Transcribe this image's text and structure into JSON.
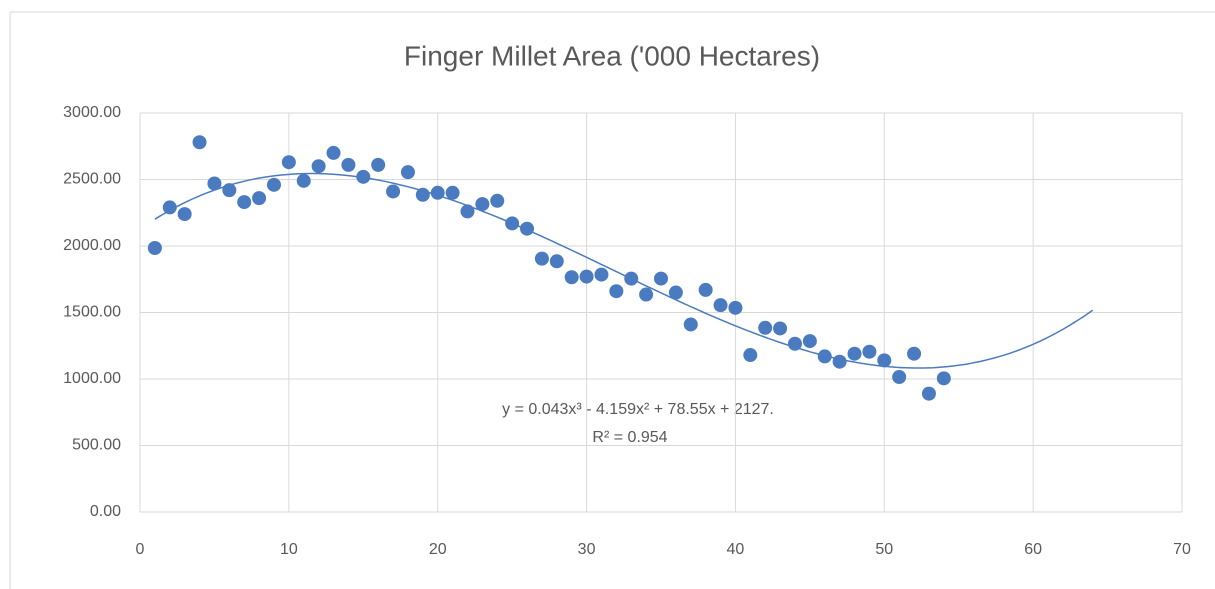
{
  "chart_data": {
    "type": "scatter",
    "title": "Finger Millet Area ('000 Hectares)",
    "color": "#4a7bc0",
    "grid": true,
    "x": [
      1,
      2,
      3,
      4,
      5,
      6,
      7,
      8,
      9,
      10,
      11,
      12,
      13,
      14,
      15,
      16,
      17,
      18,
      19,
      20,
      21,
      22,
      23,
      24,
      25,
      26,
      27,
      28,
      29,
      30,
      31,
      32,
      33,
      34,
      35,
      36,
      37,
      38,
      39,
      40,
      41,
      42,
      43,
      44,
      45,
      46,
      47,
      48,
      49,
      50,
      51,
      52,
      53,
      54
    ],
    "values": [
      1985,
      2290,
      2240,
      2780,
      2470,
      2420,
      2330,
      2360,
      2460,
      2630,
      2490,
      2600,
      2700,
      2610,
      2520,
      2610,
      2410,
      2555,
      2385,
      2400,
      2400,
      2260,
      2315,
      2340,
      2170,
      2130,
      1905,
      1885,
      1765,
      1770,
      1785,
      1660,
      1755,
      1635,
      1755,
      1650,
      1410,
      1670,
      1555,
      1535,
      1180,
      1385,
      1380,
      1265,
      1285,
      1170,
      1130,
      1190,
      1205,
      1140,
      1015,
      1190,
      890,
      1005
    ],
    "xlim": [
      0,
      70
    ],
    "xticks": [
      0,
      10,
      20,
      30,
      40,
      50,
      60,
      70
    ],
    "ylim": [
      0,
      3000
    ],
    "yticks": [
      {
        "value": 0,
        "label": "0.00"
      },
      {
        "value": 500,
        "label": "500.00"
      },
      {
        "value": 1000,
        "label": "1000.00"
      },
      {
        "value": 1500,
        "label": "1500.00"
      },
      {
        "value": 2000,
        "label": "2000.00"
      },
      {
        "value": 2500,
        "label": "2500.00"
      },
      {
        "value": 3000,
        "label": "3000.00"
      }
    ],
    "trendline": {
      "type": "polynomial",
      "order": 3,
      "xrange": [
        1,
        64
      ]
    },
    "annotations": [
      "y = 0.043x³ - 4.159x² + 78.55x + 2127.",
      "R² = 0.954"
    ]
  }
}
